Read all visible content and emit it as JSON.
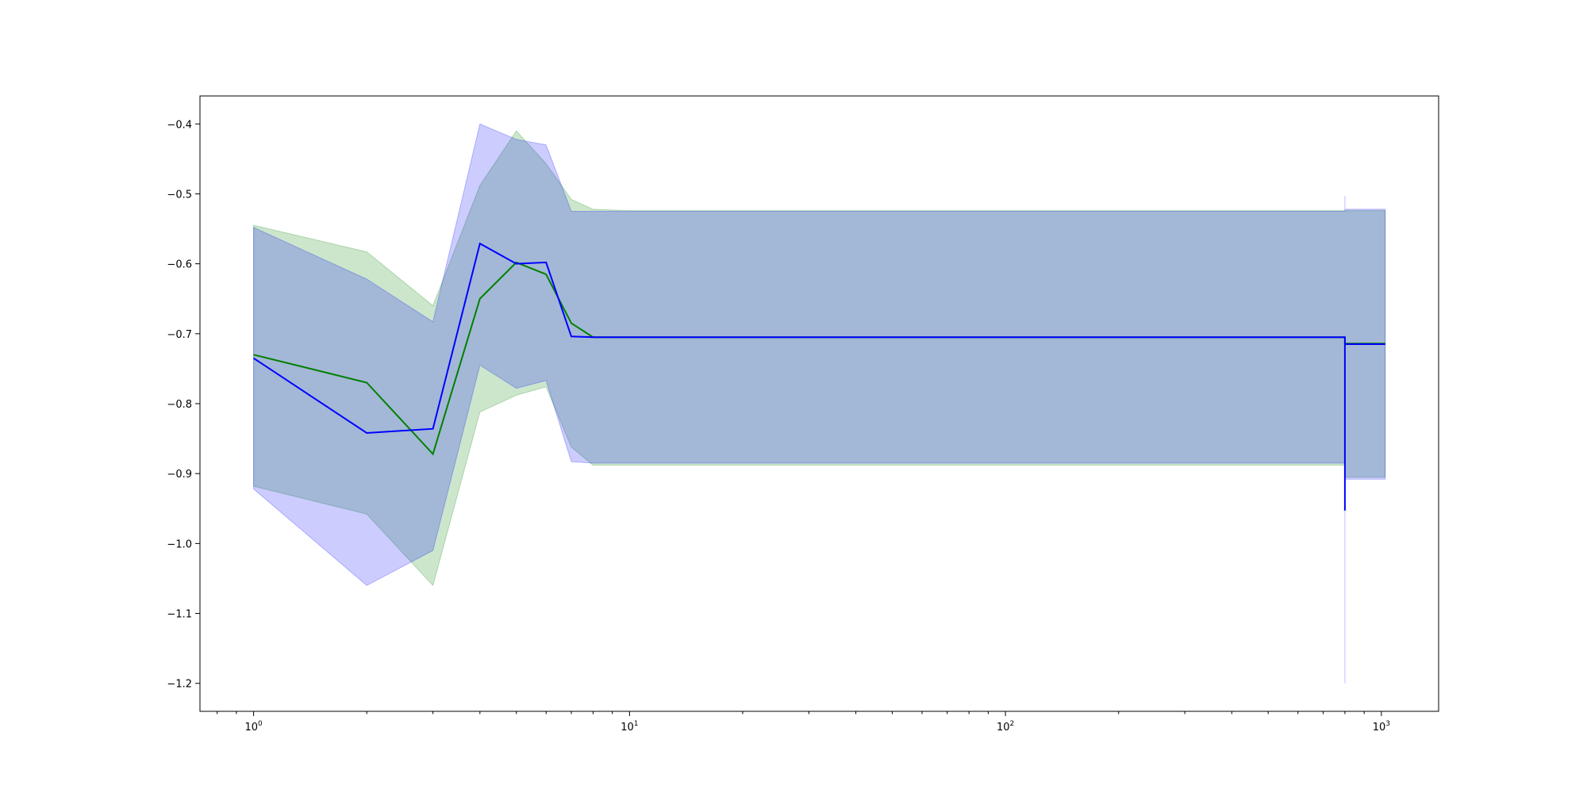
{
  "chart_data": {
    "type": "line",
    "title": "",
    "xlabel": "",
    "ylabel": "",
    "xscale": "log",
    "xlim": [
      0.72,
      1420
    ],
    "ylim": [
      -1.24,
      -0.36
    ],
    "grid": false,
    "legend": "none",
    "x_ticks": [
      {
        "base": "10",
        "exp": "0",
        "value": 1
      },
      {
        "base": "10",
        "exp": "1",
        "value": 10
      },
      {
        "base": "10",
        "exp": "2",
        "value": 100
      },
      {
        "base": "10",
        "exp": "3",
        "value": 1000
      }
    ],
    "y_ticks": [
      {
        "label": "-0.4",
        "value": -0.4
      },
      {
        "label": "-0.5",
        "value": -0.5
      },
      {
        "label": "-0.6",
        "value": -0.6
      },
      {
        "label": "-0.7",
        "value": -0.7
      },
      {
        "label": "-0.8",
        "value": -0.8
      },
      {
        "label": "-0.9",
        "value": -0.9
      },
      {
        "label": "-1.0",
        "value": -1.0
      },
      {
        "label": "-1.1",
        "value": -1.1
      },
      {
        "label": "-1.2",
        "value": -1.2
      }
    ],
    "series": [
      {
        "color": "#008000",
        "band_color": "#008000",
        "x": [
          1,
          2,
          3,
          4,
          5,
          6,
          7,
          8,
          10,
          800,
          800,
          1024
        ],
        "y": [
          -0.73,
          -0.77,
          -0.872,
          -0.65,
          -0.598,
          -0.615,
          -0.685,
          -0.705,
          -0.705,
          -0.705,
          -0.714,
          -0.714
        ],
        "lower": [
          -0.918,
          -0.958,
          -1.06,
          -0.812,
          -0.788,
          -0.776,
          -0.862,
          -0.888,
          -0.888,
          -0.888,
          -0.905,
          -0.905
        ],
        "upper": [
          -0.545,
          -0.583,
          -0.66,
          -0.488,
          -0.41,
          -0.457,
          -0.508,
          -0.522,
          -0.524,
          -0.524,
          -0.524,
          -0.524
        ]
      },
      {
        "color": "#0000ff",
        "band_color": "#0000ff",
        "x": [
          1,
          2,
          3,
          4,
          5,
          6,
          7,
          8,
          10,
          800,
          800,
          800,
          800,
          1024
        ],
        "y": [
          -0.735,
          -0.842,
          -0.836,
          -0.571,
          -0.6,
          -0.598,
          -0.704,
          -0.705,
          -0.705,
          -0.705,
          -0.953,
          -0.715,
          -0.715,
          -0.715
        ],
        "lower": [
          -0.922,
          -1.06,
          -1.01,
          -0.745,
          -0.778,
          -0.767,
          -0.883,
          -0.885,
          -0.885,
          -0.885,
          -1.2,
          -0.908,
          -0.908,
          -0.908
        ],
        "upper": [
          -0.548,
          -0.622,
          -0.683,
          -0.4,
          -0.422,
          -0.43,
          -0.525,
          -0.525,
          -0.525,
          -0.525,
          -0.503,
          -0.522,
          -0.522,
          -0.522
        ]
      }
    ]
  }
}
